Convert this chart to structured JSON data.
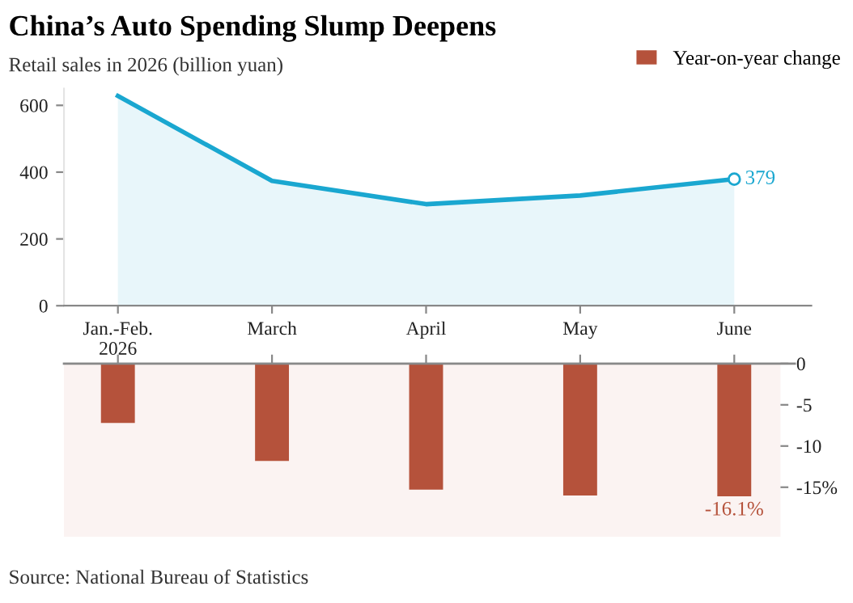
{
  "chart_data": [
    {
      "type": "area",
      "title": "China’s Auto Spending Slump Deepens",
      "ylabel": "Retail sales in 2026 (billion yuan)",
      "categories": [
        "Jan.-Feb.\n2026",
        "March",
        "April",
        "May",
        "June"
      ],
      "series": [
        {
          "color": "#1aa7d0",
          "values": [
            628,
            374,
            304,
            330,
            379
          ],
          "value_labels": [
            null,
            null,
            null,
            null,
            "379"
          ]
        }
      ],
      "ylim": [
        0,
        650
      ],
      "yticks": [
        0,
        200,
        400,
        600
      ],
      "grid": false,
      "legend": false
    },
    {
      "type": "bar",
      "categories": [
        null,
        null,
        null,
        null,
        null
      ],
      "series": [
        {
          "name": "Year-on-year change",
          "color": "#b5523b",
          "values": [
            -7.2,
            -11.8,
            -15.3,
            -16.0,
            -16.1
          ],
          "value_labels": [
            null,
            null,
            null,
            null,
            "-16.1%"
          ]
        }
      ],
      "ylim": [
        -21,
        0
      ],
      "yticks": [
        0,
        -5,
        -10,
        {
          "value": -15,
          "label": "-15%"
        }
      ],
      "tick_labels": "y",
      "grid": false,
      "legend": "top right",
      "annotations": [
        "Source: National Bureau of Statistics"
      ]
    }
  ]
}
